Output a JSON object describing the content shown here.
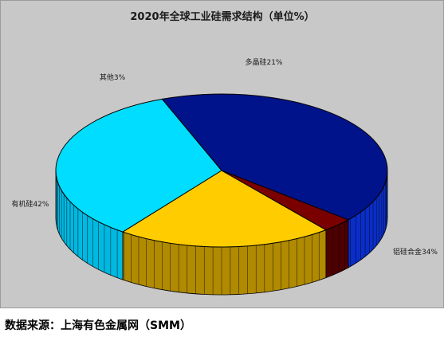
{
  "chart_data": {
    "type": "pie",
    "title": "2020年全球工业硅需求结构（单位%）",
    "slices": [
      {
        "name": "多晶硅",
        "value": 21,
        "label": "多晶硅21%",
        "color": "#ffcc00",
        "side": "#b08a00"
      },
      {
        "name": "铝硅合金",
        "value": 34,
        "label": "铝硅合金34%",
        "color": "#00ddff",
        "side": "#00b8e0"
      },
      {
        "name": "有机硅",
        "value": 42,
        "label": "有机硅42%",
        "color": "#00138a",
        "side": "#0a2ec8"
      },
      {
        "name": "其他",
        "value": 3,
        "label": "其他3%",
        "color": "#7a0000",
        "side": "#4d0000"
      }
    ],
    "legend": "none"
  },
  "footer": {
    "source": "数据来源：上海有色金属网（SMM）"
  }
}
